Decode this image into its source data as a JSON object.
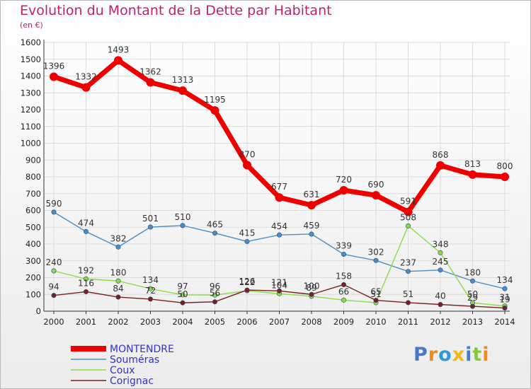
{
  "header": {
    "title": "Evolution du Montant de la Dette par Habitant",
    "subtitle": "(en €)"
  },
  "colors": {
    "title": "#c0226a",
    "grid": "#dcdcdc",
    "axis": "#333333",
    "legend_text": "#3333cc"
  },
  "chart_data": {
    "type": "line",
    "x": [
      "2000",
      "2001",
      "2002",
      "2003",
      "2004",
      "2005",
      "2006",
      "2007",
      "2008",
      "2009",
      "2010",
      "2011",
      "2012",
      "2013",
      "2014"
    ],
    "yticks": [
      "0",
      "100",
      "200",
      "300",
      "400",
      "500",
      "600",
      "700",
      "800",
      "900",
      "1000",
      "1100",
      "1200",
      "1300",
      "1400",
      "1500",
      "1600"
    ],
    "ylim": [
      0,
      1600
    ],
    "grid": true,
    "legend_position": "bottom-left",
    "series": [
      {
        "name": "MONTENDRE",
        "color": "#ee0000",
        "values": [
          1396,
          1332,
          1493,
          1362,
          1313,
          1195,
          870,
          677,
          631,
          720,
          690,
          591,
          868,
          813,
          800
        ],
        "labels": [
          "1396",
          "1332",
          "1493",
          "1362",
          "1313",
          "1195",
          "870",
          "677",
          "631",
          "720",
          "690",
          "591",
          "868",
          "813",
          "800"
        ]
      },
      {
        "name": "Souméras",
        "color": "#4b8ec7",
        "values": [
          590,
          474,
          382,
          501,
          510,
          465,
          415,
          454,
          459,
          339,
          302,
          237,
          245,
          180,
          134
        ],
        "labels": [
          "590",
          "474",
          "382",
          "501",
          "510",
          "465",
          "415",
          "454",
          "459",
          "339",
          "302",
          "237",
          "245",
          "180",
          "134"
        ]
      },
      {
        "name": "Coux",
        "color": "#88dd44",
        "values": [
          240,
          192,
          180,
          134,
          97,
          96,
          122,
          104,
          89,
          66,
          51,
          508,
          348,
          50,
          31
        ],
        "labels": [
          "240",
          "192",
          "180",
          "134",
          "97",
          "96",
          "122",
          "104",
          "89",
          "66",
          "51",
          "508",
          "348",
          "50",
          "31"
        ]
      },
      {
        "name": "Corignac",
        "color": "#7a1f1f",
        "values": [
          94,
          116,
          84,
          72,
          50,
          56,
          126,
          121,
          100,
          158,
          65,
          51,
          40,
          29,
          19
        ],
        "labels": [
          "94",
          "116",
          "84",
          "72",
          "50",
          "56",
          "126",
          "121",
          "100",
          "158",
          "65",
          "51",
          "40",
          "29",
          "19"
        ]
      }
    ]
  },
  "logo": {
    "text": "Proxiti",
    "letter_colors": [
      "#4a78c4",
      "#f08a1c",
      "#2e9bd6",
      "#f0b81c",
      "#3e7fd0",
      "#8cc63f",
      "#f08a1c"
    ]
  }
}
